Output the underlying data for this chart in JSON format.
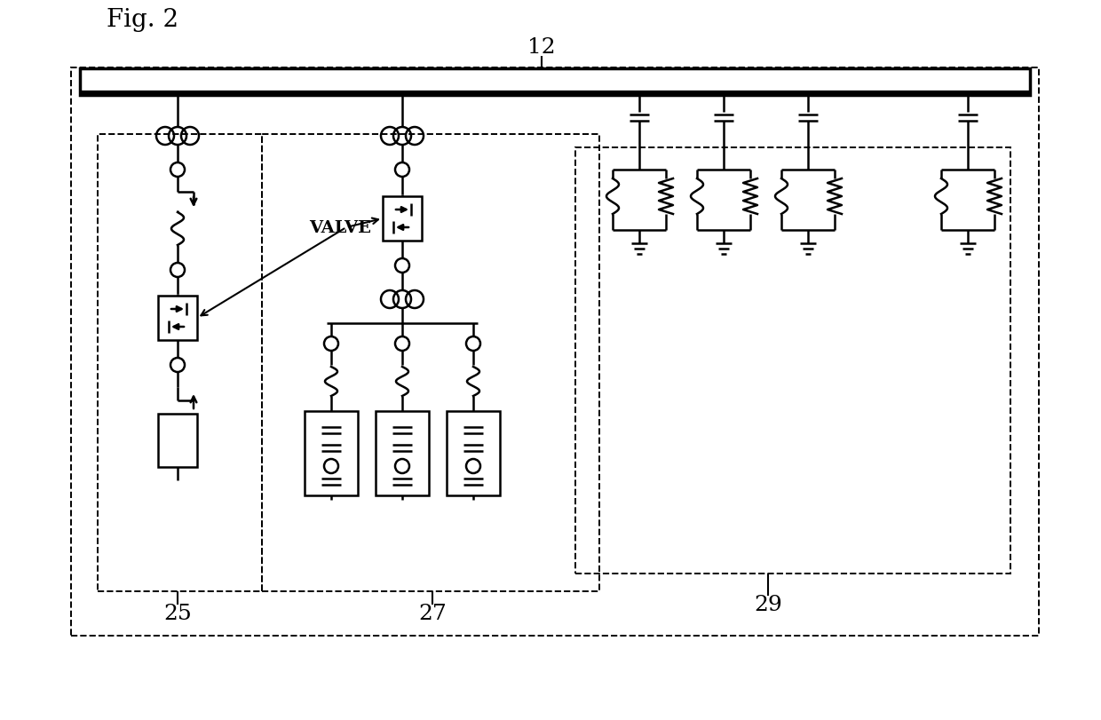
{
  "fig_label": "Fig. 2",
  "label_12": "12",
  "label_25": "25",
  "label_27": "27",
  "label_29": "29",
  "label_valve": "VALVE",
  "bg_color": "#ffffff",
  "line_color": "#000000"
}
